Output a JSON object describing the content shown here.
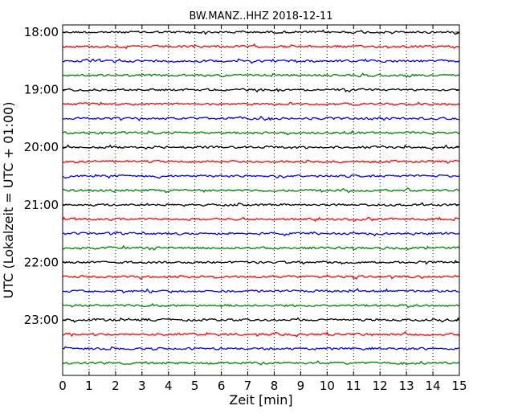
{
  "chart_data": {
    "type": "line",
    "title": "BW.MANZ..HHZ 2018-12-11",
    "xlabel": "Zeit  [min]",
    "ylabel": "UTC (Lokalzeit = UTC + 01:00)",
    "xlim": [
      0,
      15
    ],
    "x_ticks": [
      "0",
      "1",
      "2",
      "3",
      "4",
      "5",
      "6",
      "7",
      "8",
      "9",
      "10",
      "11",
      "12",
      "13",
      "14",
      "15"
    ],
    "y_ticks": [
      {
        "label": "18:00",
        "trace": 0
      },
      {
        "label": "19:00",
        "trace": 4
      },
      {
        "label": "20:00",
        "trace": 8
      },
      {
        "label": "21:00",
        "trace": 12
      },
      {
        "label": "22:00",
        "trace": 16
      },
      {
        "label": "23:00",
        "trace": 20
      }
    ],
    "trace_interval_minutes": 15,
    "trace_start_times": [
      "18:00",
      "18:15",
      "18:30",
      "18:45",
      "19:00",
      "19:15",
      "19:30",
      "19:45",
      "20:00",
      "20:15",
      "20:30",
      "20:45",
      "21:00",
      "21:15",
      "21:30",
      "21:45",
      "22:00",
      "22:15",
      "22:30",
      "22:45",
      "23:00",
      "23:15",
      "23:30",
      "23:45"
    ],
    "trace_colors": [
      "#000000",
      "#ff0000",
      "#0000ff",
      "#008000"
    ],
    "grid": "vertical dotted at each minute",
    "series_description": "24 seismic traces, colors cycling black, red, blue, green"
  }
}
